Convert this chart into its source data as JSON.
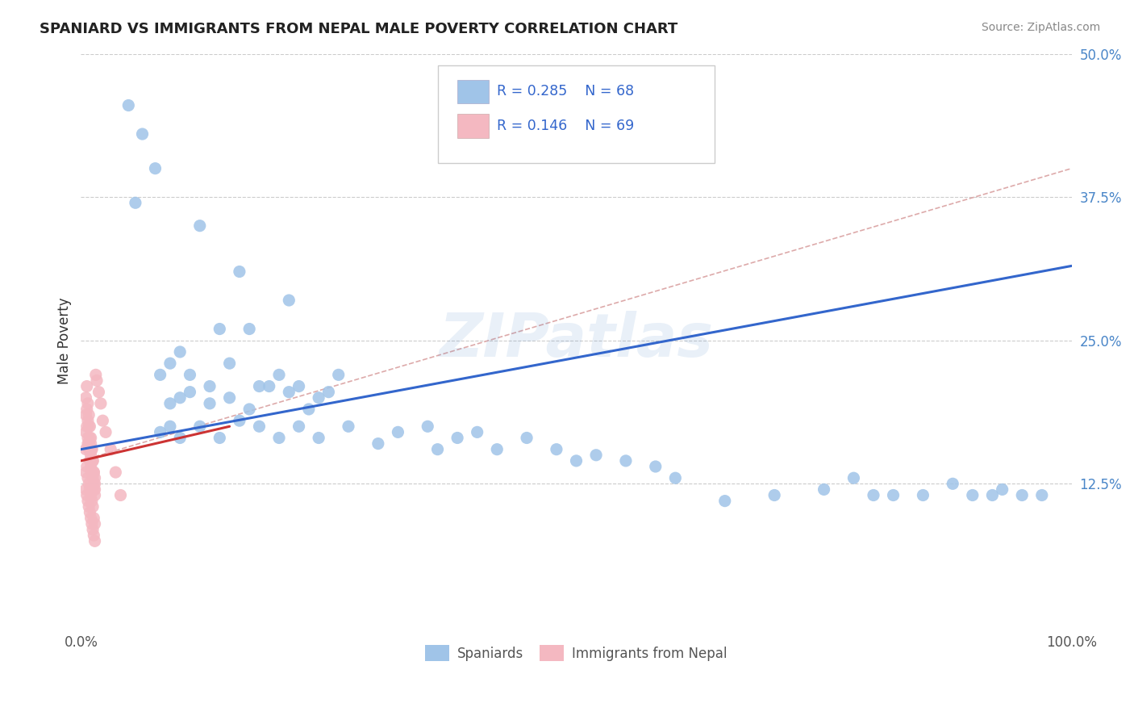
{
  "title": "SPANIARD VS IMMIGRANTS FROM NEPAL MALE POVERTY CORRELATION CHART",
  "source": "Source: ZipAtlas.com",
  "ylabel": "Male Poverty",
  "xlim": [
    0,
    1.0
  ],
  "ylim": [
    0,
    0.5
  ],
  "xticks": [
    0.0,
    1.0
  ],
  "xticklabels": [
    "0.0%",
    "100.0%"
  ],
  "ytick_vals": [
    0.0,
    0.125,
    0.25,
    0.375,
    0.5
  ],
  "ytick_labels": [
    "",
    "12.5%",
    "25.0%",
    "37.5%",
    "50.0%"
  ],
  "color_blue": "#a0c4e8",
  "color_pink": "#f4b8c1",
  "color_line_blue": "#3366cc",
  "color_line_pink": "#cc3333",
  "color_dash_blue": "#bbccdd",
  "color_dash_pink": "#ddaaaa",
  "watermark": "ZIPatlas",
  "legend_r1": "R = 0.285",
  "legend_n1": "N = 68",
  "legend_r2": "R = 0.146",
  "legend_n2": "N = 69",
  "spaniards_x": [
    0.048,
    0.062,
    0.075,
    0.055,
    0.12,
    0.16,
    0.21,
    0.17,
    0.14,
    0.1,
    0.08,
    0.09,
    0.11,
    0.13,
    0.15,
    0.18,
    0.2,
    0.22,
    0.24,
    0.26,
    0.09,
    0.1,
    0.11,
    0.13,
    0.15,
    0.17,
    0.19,
    0.21,
    0.23,
    0.25,
    0.08,
    0.09,
    0.1,
    0.12,
    0.14,
    0.16,
    0.18,
    0.2,
    0.22,
    0.24,
    0.27,
    0.3,
    0.32,
    0.35,
    0.36,
    0.38,
    0.4,
    0.42,
    0.45,
    0.48,
    0.5,
    0.52,
    0.55,
    0.58,
    0.6,
    0.65,
    0.7,
    0.75,
    0.78,
    0.8,
    0.82,
    0.85,
    0.88,
    0.9,
    0.92,
    0.93,
    0.95,
    0.97
  ],
  "spaniards_y": [
    0.455,
    0.43,
    0.4,
    0.37,
    0.35,
    0.31,
    0.285,
    0.26,
    0.26,
    0.24,
    0.22,
    0.23,
    0.22,
    0.21,
    0.23,
    0.21,
    0.22,
    0.21,
    0.2,
    0.22,
    0.195,
    0.2,
    0.205,
    0.195,
    0.2,
    0.19,
    0.21,
    0.205,
    0.19,
    0.205,
    0.17,
    0.175,
    0.165,
    0.175,
    0.165,
    0.18,
    0.175,
    0.165,
    0.175,
    0.165,
    0.175,
    0.16,
    0.17,
    0.175,
    0.155,
    0.165,
    0.17,
    0.155,
    0.165,
    0.155,
    0.145,
    0.15,
    0.145,
    0.14,
    0.13,
    0.11,
    0.115,
    0.12,
    0.13,
    0.115,
    0.115,
    0.115,
    0.125,
    0.115,
    0.115,
    0.12,
    0.115,
    0.115
  ],
  "nepal_x": [
    0.005,
    0.007,
    0.008,
    0.009,
    0.01,
    0.01,
    0.011,
    0.012,
    0.013,
    0.014,
    0.005,
    0.006,
    0.007,
    0.008,
    0.009,
    0.01,
    0.011,
    0.012,
    0.013,
    0.014,
    0.005,
    0.006,
    0.007,
    0.008,
    0.009,
    0.01,
    0.011,
    0.012,
    0.013,
    0.014,
    0.005,
    0.006,
    0.007,
    0.008,
    0.009,
    0.01,
    0.011,
    0.012,
    0.013,
    0.014,
    0.005,
    0.006,
    0.007,
    0.008,
    0.009,
    0.01,
    0.011,
    0.012,
    0.013,
    0.014,
    0.005,
    0.006,
    0.007,
    0.008,
    0.009,
    0.01,
    0.011,
    0.012,
    0.013,
    0.014,
    0.015,
    0.016,
    0.018,
    0.02,
    0.022,
    0.025,
    0.03,
    0.035,
    0.04
  ],
  "nepal_y": [
    0.155,
    0.16,
    0.155,
    0.145,
    0.14,
    0.145,
    0.135,
    0.13,
    0.12,
    0.115,
    0.17,
    0.175,
    0.165,
    0.16,
    0.155,
    0.15,
    0.145,
    0.135,
    0.125,
    0.12,
    0.185,
    0.19,
    0.18,
    0.175,
    0.165,
    0.16,
    0.155,
    0.145,
    0.135,
    0.13,
    0.12,
    0.115,
    0.11,
    0.105,
    0.1,
    0.095,
    0.09,
    0.085,
    0.08,
    0.075,
    0.135,
    0.14,
    0.13,
    0.125,
    0.12,
    0.115,
    0.11,
    0.105,
    0.095,
    0.09,
    0.2,
    0.21,
    0.195,
    0.185,
    0.175,
    0.165,
    0.155,
    0.145,
    0.135,
    0.125,
    0.22,
    0.215,
    0.205,
    0.195,
    0.18,
    0.17,
    0.155,
    0.135,
    0.115
  ]
}
